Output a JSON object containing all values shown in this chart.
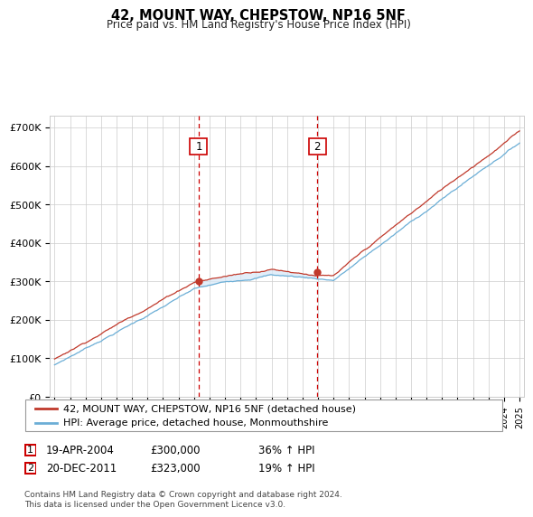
{
  "title": "42, MOUNT WAY, CHEPSTOW, NP16 5NF",
  "subtitle": "Price paid vs. HM Land Registry's House Price Index (HPI)",
  "legend_line1": "42, MOUNT WAY, CHEPSTOW, NP16 5NF (detached house)",
  "legend_line2": "HPI: Average price, detached house, Monmouthshire",
  "footer": "Contains HM Land Registry data © Crown copyright and database right 2024.\nThis data is licensed under the Open Government Licence v3.0.",
  "transaction1_date": "19-APR-2004",
  "transaction1_price": "£300,000",
  "transaction1_hpi": "36% ↑ HPI",
  "transaction2_date": "20-DEC-2011",
  "transaction2_price": "£323,000",
  "transaction2_hpi": "19% ↑ HPI",
  "ylim": [
    0,
    730000
  ],
  "yticks": [
    0,
    100000,
    200000,
    300000,
    400000,
    500000,
    600000,
    700000
  ],
  "ytick_labels": [
    "£0",
    "£100K",
    "£200K",
    "£300K",
    "£400K",
    "£500K",
    "£600K",
    "£700K"
  ],
  "transaction1_year": 2004.3,
  "transaction2_year": 2011.96,
  "hpi_color": "#6baed6",
  "price_color": "#c0392b",
  "shade_color": "#d6e8f7",
  "grid_color": "#cccccc",
  "background_color": "#ffffff"
}
